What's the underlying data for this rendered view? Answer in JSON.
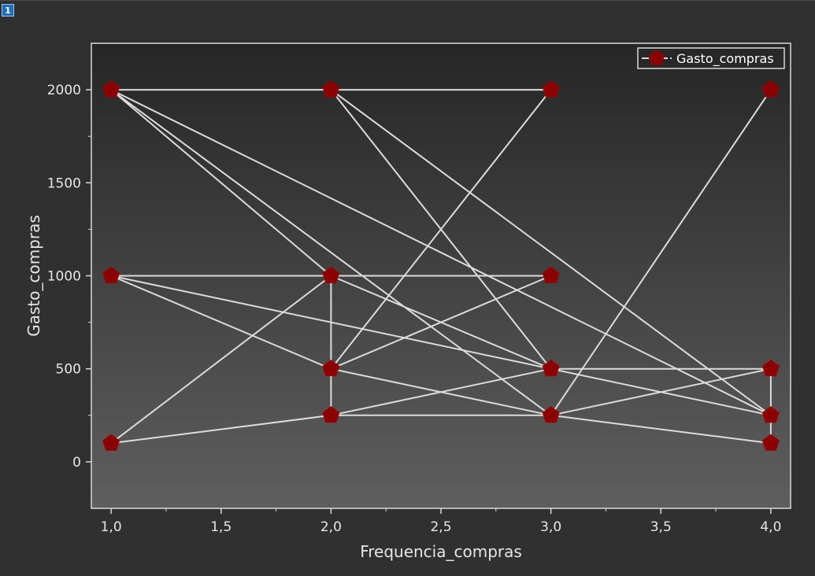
{
  "window": {
    "layer_label": "1"
  },
  "colors": {
    "window_bg": "#303030",
    "plot_gradient_top": "#262626",
    "plot_gradient_bottom": "#5e5e5e",
    "frame": "#d9d9d9",
    "line": "#dcdcdc",
    "marker_fill": "#8b0000",
    "marker_stroke": "#a30000"
  },
  "chart_data": {
    "type": "line",
    "xlabel": "Frequencia_compras",
    "ylabel": "Gasto_compras",
    "xlim": [
      0.91,
      4.09
    ],
    "ylim": [
      -250,
      2250
    ],
    "x_ticks": [
      1.0,
      1.5,
      2.0,
      2.5,
      3.0,
      3.5,
      4.0
    ],
    "x_tick_labels": [
      "1,0",
      "1,5",
      "2,0",
      "2,5",
      "3,0",
      "3,5",
      "4,0"
    ],
    "y_ticks": [
      0,
      500,
      1000,
      1500,
      2000
    ],
    "y_tick_labels": [
      "0",
      "500",
      "1000",
      "1500",
      "2000"
    ],
    "grid": false,
    "legend_position": "top-right",
    "marker": "pentagon",
    "series": [
      {
        "name": "Gasto_compras",
        "x": [
          1,
          2,
          1,
          3,
          1,
          2,
          3,
          2,
          1,
          4,
          2,
          3,
          2,
          1,
          3,
          4,
          3,
          1,
          4,
          1,
          2,
          3,
          2,
          3,
          4,
          4,
          3,
          2,
          2
        ],
        "y": [
          2000,
          2000,
          2000,
          250,
          2000,
          1000,
          500,
          2000,
          2000,
          250,
          2000,
          2000,
          500,
          1000,
          500,
          500,
          500,
          1000,
          250,
          1000,
          1000,
          1000,
          500,
          250,
          500,
          100,
          250,
          250,
          1000
        ]
      },
      {
        "name": "",
        "x": [
          1,
          2,
          3
        ],
        "y": [
          100,
          250,
          500
        ]
      },
      {
        "name": "",
        "x": [
          3,
          4
        ],
        "y": [
          250,
          2000
        ]
      },
      {
        "name": "",
        "x": [
          1,
          2
        ],
        "y": [
          100,
          1000
        ]
      }
    ]
  }
}
